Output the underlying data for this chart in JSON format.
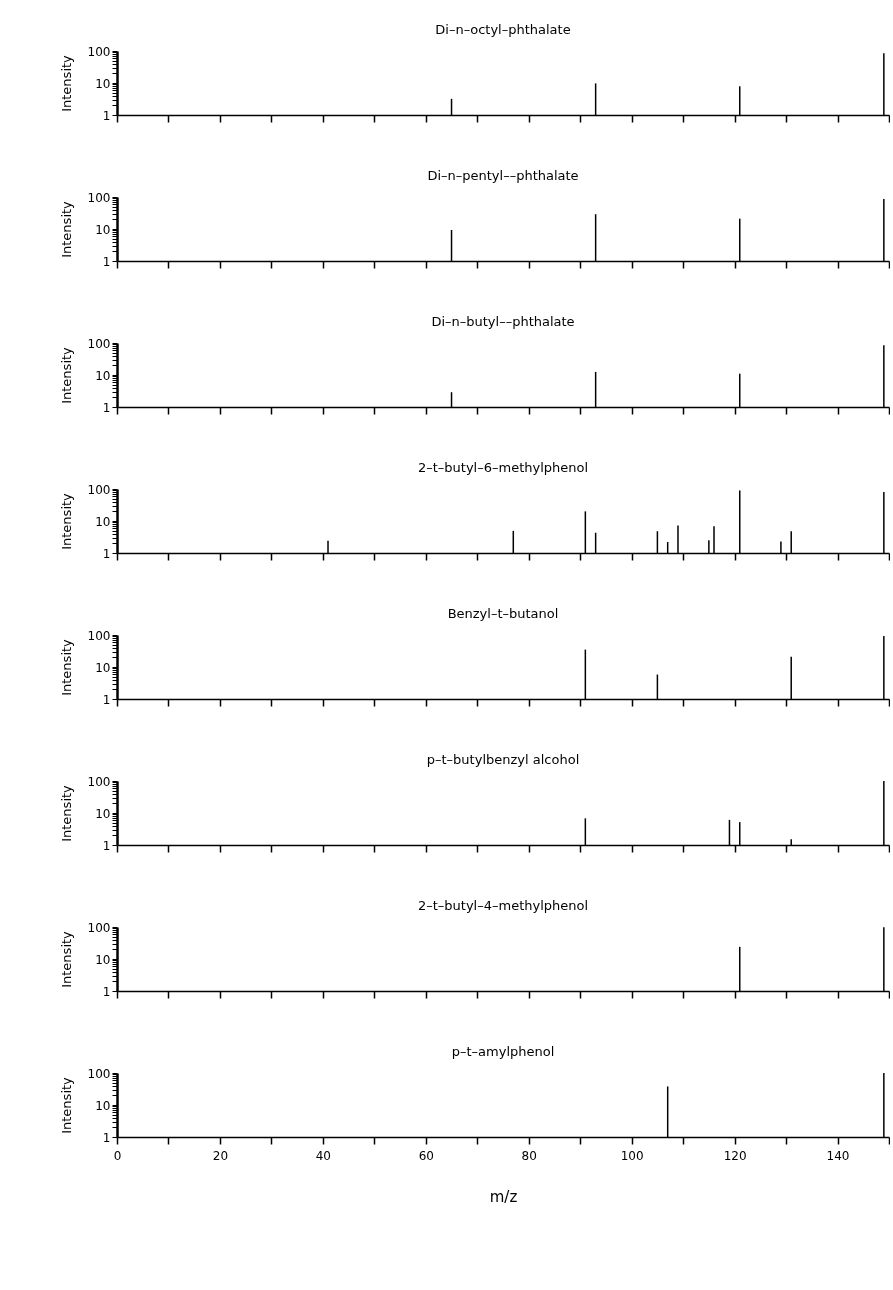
{
  "chart_data": [
    {
      "type": "bar",
      "title": "Di–n–octyl–phthalate",
      "ylabel": "Intensity",
      "x": [
        65,
        93,
        121,
        149
      ],
      "values": [
        3.2,
        9.7,
        7.9,
        85
      ],
      "color": "#000000",
      "log": "y",
      "xlim": [
        0,
        150
      ],
      "ylim": [
        1,
        100
      ],
      "xticks": [
        0,
        {
          "value": 10,
          "label": null
        },
        20,
        {
          "value": 30,
          "label": null
        },
        40,
        {
          "value": 50,
          "label": null
        },
        60,
        {
          "value": 70,
          "label": null
        },
        80,
        {
          "value": 90,
          "label": null
        },
        100,
        {
          "value": 110,
          "label": null
        },
        120,
        {
          "value": 130,
          "label": null
        },
        140,
        {
          "value": 150,
          "label": null
        }
      ],
      "yticks": [
        1,
        {
          "value": 2,
          "label": null
        },
        {
          "value": 3,
          "label": null
        },
        {
          "value": 4,
          "label": null
        },
        {
          "value": 5,
          "label": null
        },
        {
          "value": 6,
          "label": null
        },
        {
          "value": 7,
          "label": null
        },
        {
          "value": 8,
          "label": null
        },
        {
          "value": 9,
          "label": null
        },
        10,
        {
          "value": 20,
          "label": null
        },
        {
          "value": 30,
          "label": null
        },
        {
          "value": 40,
          "label": null
        },
        {
          "value": 50,
          "label": null
        },
        {
          "value": 60,
          "label": null
        },
        {
          "value": 70,
          "label": null
        },
        {
          "value": 80,
          "label": null
        },
        {
          "value": 90,
          "label": null
        },
        100
      ],
      "tick_labels": "y",
      "grid": false
    },
    {
      "type": "bar",
      "title": "Di–n–pentyl––phthalate",
      "ylabel": "Intensity",
      "x": [
        65,
        93,
        121,
        149
      ],
      "values": [
        9.3,
        29,
        21,
        87
      ],
      "color": "#000000",
      "log": "y",
      "xlim": [
        0,
        150
      ],
      "ylim": [
        1,
        100
      ],
      "xticks": [
        0,
        {
          "value": 10,
          "label": null
        },
        20,
        {
          "value": 30,
          "label": null
        },
        40,
        {
          "value": 50,
          "label": null
        },
        60,
        {
          "value": 70,
          "label": null
        },
        80,
        {
          "value": 90,
          "label": null
        },
        100,
        {
          "value": 110,
          "label": null
        },
        120,
        {
          "value": 130,
          "label": null
        },
        140,
        {
          "value": 150,
          "label": null
        }
      ],
      "yticks": [
        1,
        {
          "value": 2,
          "label": null
        },
        {
          "value": 3,
          "label": null
        },
        {
          "value": 4,
          "label": null
        },
        {
          "value": 5,
          "label": null
        },
        {
          "value": 6,
          "label": null
        },
        {
          "value": 7,
          "label": null
        },
        {
          "value": 8,
          "label": null
        },
        {
          "value": 9,
          "label": null
        },
        10,
        {
          "value": 20,
          "label": null
        },
        {
          "value": 30,
          "label": null
        },
        {
          "value": 40,
          "label": null
        },
        {
          "value": 50,
          "label": null
        },
        {
          "value": 60,
          "label": null
        },
        {
          "value": 70,
          "label": null
        },
        {
          "value": 80,
          "label": null
        },
        {
          "value": 90,
          "label": null
        },
        100
      ],
      "tick_labels": "y",
      "grid": false
    },
    {
      "type": "bar",
      "title": "Di–n–butyl––phthalate",
      "ylabel": "Intensity",
      "x": [
        65,
        93,
        121,
        149
      ],
      "values": [
        2.9,
        12.5,
        11,
        85
      ],
      "color": "#000000",
      "log": "y",
      "xlim": [
        0,
        150
      ],
      "ylim": [
        1,
        100
      ],
      "xticks": [
        0,
        {
          "value": 10,
          "label": null
        },
        20,
        {
          "value": 30,
          "label": null
        },
        40,
        {
          "value": 50,
          "label": null
        },
        60,
        {
          "value": 70,
          "label": null
        },
        80,
        {
          "value": 90,
          "label": null
        },
        100,
        {
          "value": 110,
          "label": null
        },
        120,
        {
          "value": 130,
          "label": null
        },
        140,
        {
          "value": 150,
          "label": null
        }
      ],
      "yticks": [
        1,
        {
          "value": 2,
          "label": null
        },
        {
          "value": 3,
          "label": null
        },
        {
          "value": 4,
          "label": null
        },
        {
          "value": 5,
          "label": null
        },
        {
          "value": 6,
          "label": null
        },
        {
          "value": 7,
          "label": null
        },
        {
          "value": 8,
          "label": null
        },
        {
          "value": 9,
          "label": null
        },
        10,
        {
          "value": 20,
          "label": null
        },
        {
          "value": 30,
          "label": null
        },
        {
          "value": 40,
          "label": null
        },
        {
          "value": 50,
          "label": null
        },
        {
          "value": 60,
          "label": null
        },
        {
          "value": 70,
          "label": null
        },
        {
          "value": 80,
          "label": null
        },
        {
          "value": 90,
          "label": null
        },
        100
      ],
      "tick_labels": "y",
      "grid": false
    },
    {
      "type": "bar",
      "title": "2–t–butyl–6–methylphenol",
      "ylabel": "Intensity",
      "x": [
        41,
        77,
        91,
        93,
        105,
        107,
        109,
        115,
        116,
        121,
        129,
        131,
        149
      ],
      "values": [
        2.4,
        4.9,
        20,
        4.3,
        4.8,
        2.2,
        7.2,
        2.5,
        6.8,
        90,
        2.3,
        4.8,
        81
      ],
      "color": "#000000",
      "log": "y",
      "xlim": [
        0,
        150
      ],
      "ylim": [
        1,
        100
      ],
      "xticks": [
        0,
        {
          "value": 10,
          "label": null
        },
        20,
        {
          "value": 30,
          "label": null
        },
        40,
        {
          "value": 50,
          "label": null
        },
        60,
        {
          "value": 70,
          "label": null
        },
        80,
        {
          "value": 90,
          "label": null
        },
        100,
        {
          "value": 110,
          "label": null
        },
        120,
        {
          "value": 130,
          "label": null
        },
        140,
        {
          "value": 150,
          "label": null
        }
      ],
      "yticks": [
        1,
        {
          "value": 2,
          "label": null
        },
        {
          "value": 3,
          "label": null
        },
        {
          "value": 4,
          "label": null
        },
        {
          "value": 5,
          "label": null
        },
        {
          "value": 6,
          "label": null
        },
        {
          "value": 7,
          "label": null
        },
        {
          "value": 8,
          "label": null
        },
        {
          "value": 9,
          "label": null
        },
        10,
        {
          "value": 20,
          "label": null
        },
        {
          "value": 30,
          "label": null
        },
        {
          "value": 40,
          "label": null
        },
        {
          "value": 50,
          "label": null
        },
        {
          "value": 60,
          "label": null
        },
        {
          "value": 70,
          "label": null
        },
        {
          "value": 80,
          "label": null
        },
        {
          "value": 90,
          "label": null
        },
        100
      ],
      "tick_labels": "y",
      "grid": false
    },
    {
      "type": "bar",
      "title": "Benzyl–t–butanol",
      "ylabel": "Intensity",
      "x": [
        91,
        105,
        131,
        149
      ],
      "values": [
        35,
        5.8,
        21,
        93
      ],
      "color": "#000000",
      "log": "y",
      "xlim": [
        0,
        150
      ],
      "ylim": [
        1,
        100
      ],
      "xticks": [
        0,
        {
          "value": 10,
          "label": null
        },
        20,
        {
          "value": 30,
          "label": null
        },
        40,
        {
          "value": 50,
          "label": null
        },
        60,
        {
          "value": 70,
          "label": null
        },
        80,
        {
          "value": 90,
          "label": null
        },
        100,
        {
          "value": 110,
          "label": null
        },
        120,
        {
          "value": 130,
          "label": null
        },
        140,
        {
          "value": 150,
          "label": null
        }
      ],
      "yticks": [
        1,
        {
          "value": 2,
          "label": null
        },
        {
          "value": 3,
          "label": null
        },
        {
          "value": 4,
          "label": null
        },
        {
          "value": 5,
          "label": null
        },
        {
          "value": 6,
          "label": null
        },
        {
          "value": 7,
          "label": null
        },
        {
          "value": 8,
          "label": null
        },
        {
          "value": 9,
          "label": null
        },
        10,
        {
          "value": 20,
          "label": null
        },
        {
          "value": 30,
          "label": null
        },
        {
          "value": 40,
          "label": null
        },
        {
          "value": 50,
          "label": null
        },
        {
          "value": 60,
          "label": null
        },
        {
          "value": 70,
          "label": null
        },
        {
          "value": 80,
          "label": null
        },
        {
          "value": 90,
          "label": null
        },
        100
      ],
      "tick_labels": "y",
      "grid": false
    },
    {
      "type": "bar",
      "title": "p–t–butylbenzyl  alcohol",
      "ylabel": "Intensity",
      "x": [
        91,
        119,
        121,
        131,
        149
      ],
      "values": [
        6.8,
        6.1,
        5.2,
        1.5,
        100
      ],
      "color": "#000000",
      "log": "y",
      "xlim": [
        0,
        150
      ],
      "ylim": [
        1,
        100
      ],
      "xticks": [
        0,
        {
          "value": 10,
          "label": null
        },
        20,
        {
          "value": 30,
          "label": null
        },
        40,
        {
          "value": 50,
          "label": null
        },
        60,
        {
          "value": 70,
          "label": null
        },
        80,
        {
          "value": 90,
          "label": null
        },
        100,
        {
          "value": 110,
          "label": null
        },
        120,
        {
          "value": 130,
          "label": null
        },
        140,
        {
          "value": 150,
          "label": null
        }
      ],
      "yticks": [
        1,
        {
          "value": 2,
          "label": null
        },
        {
          "value": 3,
          "label": null
        },
        {
          "value": 4,
          "label": null
        },
        {
          "value": 5,
          "label": null
        },
        {
          "value": 6,
          "label": null
        },
        {
          "value": 7,
          "label": null
        },
        {
          "value": 8,
          "label": null
        },
        {
          "value": 9,
          "label": null
        },
        10,
        {
          "value": 20,
          "label": null
        },
        {
          "value": 30,
          "label": null
        },
        {
          "value": 40,
          "label": null
        },
        {
          "value": 50,
          "label": null
        },
        {
          "value": 60,
          "label": null
        },
        {
          "value": 70,
          "label": null
        },
        {
          "value": 80,
          "label": null
        },
        {
          "value": 90,
          "label": null
        },
        100
      ],
      "tick_labels": "y",
      "grid": false
    },
    {
      "type": "bar",
      "title": "2–t–butyl–4–methylphenol",
      "ylabel": "Intensity",
      "x": [
        121,
        149
      ],
      "values": [
        24,
        98
      ],
      "color": "#000000",
      "log": "y",
      "xlim": [
        0,
        150
      ],
      "ylim": [
        1,
        100
      ],
      "xticks": [
        0,
        {
          "value": 10,
          "label": null
        },
        20,
        {
          "value": 30,
          "label": null
        },
        40,
        {
          "value": 50,
          "label": null
        },
        60,
        {
          "value": 70,
          "label": null
        },
        80,
        {
          "value": 90,
          "label": null
        },
        100,
        {
          "value": 110,
          "label": null
        },
        120,
        {
          "value": 130,
          "label": null
        },
        140,
        {
          "value": 150,
          "label": null
        }
      ],
      "yticks": [
        1,
        {
          "value": 2,
          "label": null
        },
        {
          "value": 3,
          "label": null
        },
        {
          "value": 4,
          "label": null
        },
        {
          "value": 5,
          "label": null
        },
        {
          "value": 6,
          "label": null
        },
        {
          "value": 7,
          "label": null
        },
        {
          "value": 8,
          "label": null
        },
        {
          "value": 9,
          "label": null
        },
        10,
        {
          "value": 20,
          "label": null
        },
        {
          "value": 30,
          "label": null
        },
        {
          "value": 40,
          "label": null
        },
        {
          "value": 50,
          "label": null
        },
        {
          "value": 60,
          "label": null
        },
        {
          "value": 70,
          "label": null
        },
        {
          "value": 80,
          "label": null
        },
        {
          "value": 90,
          "label": null
        },
        100
      ],
      "tick_labels": "y",
      "grid": false
    },
    {
      "type": "bar",
      "title": "p–t–amylphenol",
      "ylabel": "Intensity",
      "xlabel": "m/z",
      "x": [
        107,
        149
      ],
      "values": [
        38,
        100
      ],
      "color": "#000000",
      "log": "y",
      "xlim": [
        0,
        150
      ],
      "ylim": [
        1,
        100
      ],
      "xticks": [
        0,
        {
          "value": 10,
          "label": null
        },
        20,
        {
          "value": 30,
          "label": null
        },
        40,
        {
          "value": 50,
          "label": null
        },
        60,
        {
          "value": 70,
          "label": null
        },
        80,
        {
          "value": 90,
          "label": null
        },
        100,
        {
          "value": 110,
          "label": null
        },
        120,
        {
          "value": 130,
          "label": null
        },
        140,
        {
          "value": 150,
          "label": null
        }
      ],
      "yticks": [
        1,
        {
          "value": 2,
          "label": null
        },
        {
          "value": 3,
          "label": null
        },
        {
          "value": 4,
          "label": null
        },
        {
          "value": 5,
          "label": null
        },
        {
          "value": 6,
          "label": null
        },
        {
          "value": 7,
          "label": null
        },
        {
          "value": 8,
          "label": null
        },
        {
          "value": 9,
          "label": null
        },
        10,
        {
          "value": 20,
          "label": null
        },
        {
          "value": 30,
          "label": null
        },
        {
          "value": 40,
          "label": null
        },
        {
          "value": 50,
          "label": null
        },
        {
          "value": 60,
          "label": null
        },
        {
          "value": 70,
          "label": null
        },
        {
          "value": 80,
          "label": null
        },
        {
          "value": 90,
          "label": null
        },
        100
      ],
      "grid": false
    }
  ]
}
